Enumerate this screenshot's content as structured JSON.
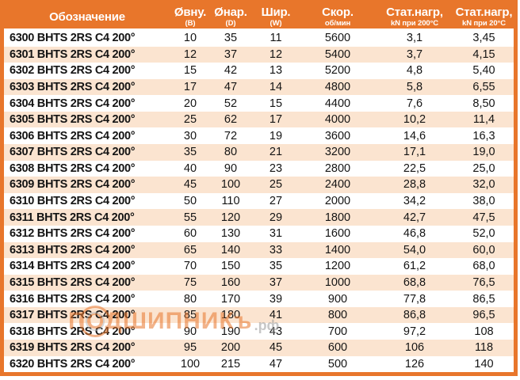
{
  "header": {
    "columns": [
      {
        "label": "Обозначение",
        "sub": ""
      },
      {
        "label": "Øвну.",
        "sub": "(B)"
      },
      {
        "label": "Øнар.",
        "sub": "(D)"
      },
      {
        "label": "Шир.",
        "sub": "(W)"
      },
      {
        "label": "Скор.",
        "sub": "об/мин"
      },
      {
        "label": "Стат.нагр,",
        "sub": "kN при 200°С"
      },
      {
        "label": "Стат.нагр,",
        "sub": "kN при 20°С"
      }
    ]
  },
  "rows": [
    {
      "designation": "6300 BHTS 2RS C4 200°",
      "d_inner": "10",
      "d_outer": "35",
      "width": "11",
      "speed": "5600",
      "load_200": "3,1",
      "load_20": "3,45"
    },
    {
      "designation": "6301 BHTS 2RS C4 200°",
      "d_inner": "12",
      "d_outer": "37",
      "width": "12",
      "speed": "5400",
      "load_200": "3,7",
      "load_20": "4,15"
    },
    {
      "designation": "6302 BHTS 2RS C4 200°",
      "d_inner": "15",
      "d_outer": "42",
      "width": "13",
      "speed": "5200",
      "load_200": "4,8",
      "load_20": "5,40"
    },
    {
      "designation": "6303 BHTS 2RS C4 200°",
      "d_inner": "17",
      "d_outer": "47",
      "width": "14",
      "speed": "4800",
      "load_200": "5,8",
      "load_20": "6,55"
    },
    {
      "designation": "6304 BHTS 2RS C4 200°",
      "d_inner": "20",
      "d_outer": "52",
      "width": "15",
      "speed": "4400",
      "load_200": "7,6",
      "load_20": "8,50"
    },
    {
      "designation": "6305 BHTS 2RS C4 200°",
      "d_inner": "25",
      "d_outer": "62",
      "width": "17",
      "speed": "4000",
      "load_200": "10,2",
      "load_20": "11,4"
    },
    {
      "designation": "6306 BHTS 2RS C4 200°",
      "d_inner": "30",
      "d_outer": "72",
      "width": "19",
      "speed": "3600",
      "load_200": "14,6",
      "load_20": "16,3"
    },
    {
      "designation": "6307 BHTS 2RS C4 200°",
      "d_inner": "35",
      "d_outer": "80",
      "width": "21",
      "speed": "3200",
      "load_200": "17,1",
      "load_20": "19,0"
    },
    {
      "designation": "6308 BHTS 2RS C4 200°",
      "d_inner": "40",
      "d_outer": "90",
      "width": "23",
      "speed": "2800",
      "load_200": "22,5",
      "load_20": "25,0"
    },
    {
      "designation": "6309 BHTS 2RS C4 200°",
      "d_inner": "45",
      "d_outer": "100",
      "width": "25",
      "speed": "2400",
      "load_200": "28,8",
      "load_20": "32,0"
    },
    {
      "designation": "6310 BHTS 2RS C4 200°",
      "d_inner": "50",
      "d_outer": "110",
      "width": "27",
      "speed": "2000",
      "load_200": "34,2",
      "load_20": "38,0"
    },
    {
      "designation": "6311 BHTS 2RS C4 200°",
      "d_inner": "55",
      "d_outer": "120",
      "width": "29",
      "speed": "1800",
      "load_200": "42,7",
      "load_20": "47,5"
    },
    {
      "designation": "6312 BHTS 2RS C4 200°",
      "d_inner": "60",
      "d_outer": "130",
      "width": "31",
      "speed": "1600",
      "load_200": "46,8",
      "load_20": "52,0"
    },
    {
      "designation": "6313 BHTS 2RS C4 200°",
      "d_inner": "65",
      "d_outer": "140",
      "width": "33",
      "speed": "1400",
      "load_200": "54,0",
      "load_20": "60,0"
    },
    {
      "designation": "6314 BHTS 2RS C4 200°",
      "d_inner": "70",
      "d_outer": "150",
      "width": "35",
      "speed": "1200",
      "load_200": "61,2",
      "load_20": "68,0"
    },
    {
      "designation": "6315 BHTS 2RS C4 200°",
      "d_inner": "75",
      "d_outer": "160",
      "width": "37",
      "speed": "1000",
      "load_200": "68,8",
      "load_20": "76,5"
    },
    {
      "designation": "6316 BHTS 2RS C4 200°",
      "d_inner": "80",
      "d_outer": "170",
      "width": "39",
      "speed": "900",
      "load_200": "77,8",
      "load_20": "86,5"
    },
    {
      "designation": "6317 BHTS 2RS C4 200°",
      "d_inner": "85",
      "d_outer": "180",
      "width": "41",
      "speed": "800",
      "load_200": "86,8",
      "load_20": "96,5"
    },
    {
      "designation": "6318 BHTS 2RS C4 200°",
      "d_inner": "90",
      "d_outer": "190",
      "width": "43",
      "speed": "700",
      "load_200": "97,2",
      "load_20": "108"
    },
    {
      "designation": "6319 BHTS 2RS C4 200°",
      "d_inner": "95",
      "d_outer": "200",
      "width": "45",
      "speed": "600",
      "load_200": "106",
      "load_20": "118"
    },
    {
      "designation": "6320 BHTS 2RS C4 200°",
      "d_inner": "100",
      "d_outer": "215",
      "width": "47",
      "speed": "500",
      "load_200": "126",
      "load_20": "140"
    }
  ],
  "watermark": {
    "text": "ПОДШИПНИКъ",
    "suffix": ".рф"
  },
  "colors": {
    "header_bg": "#E8762B",
    "border": "#E8762B",
    "row_even": "#FBE4D0",
    "row_odd": "#FFFFFF",
    "header_text": "#FFFFFF",
    "body_text": "#141414",
    "watermark_orange": "#E8762B",
    "watermark_gray": "#9A9A9A"
  }
}
